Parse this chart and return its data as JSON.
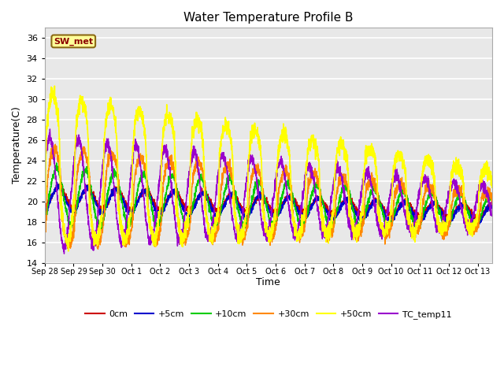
{
  "title": "Water Temperature Profile B",
  "xlabel": "Time",
  "ylabel": "Temperature(C)",
  "ylim": [
    14,
    37
  ],
  "yticks": [
    14,
    16,
    18,
    20,
    22,
    24,
    26,
    28,
    30,
    32,
    34,
    36
  ],
  "series_labels": [
    "0cm",
    "+5cm",
    "+10cm",
    "+30cm",
    "+50cm",
    "TC_temp11"
  ],
  "series_colors": [
    "#cc0000",
    "#0000cc",
    "#00cc00",
    "#ff8800",
    "#ffff00",
    "#9900cc"
  ],
  "series_linewidths": [
    1.0,
    1.0,
    1.0,
    1.0,
    1.2,
    1.0
  ],
  "annotation_text": "SW_met",
  "annotation_color": "#8b0000",
  "annotation_bg": "#ffff99",
  "annotation_border": "#8b6914",
  "fig_bg_color": "#ffffff",
  "plot_bg_color": "#e8e8e8",
  "grid_color": "#ffffff",
  "tick_labels": [
    "Sep 28",
    "Sep 29",
    "Sep 30",
    "Oct 1",
    "Oct 2",
    "Oct 3",
    "Oct 4",
    "Oct 5",
    "Oct 6",
    "Oct 7",
    "Oct 8",
    "Oct 9",
    "Oct 10",
    "Oct 11",
    "Oct 12",
    "Oct 13"
  ],
  "n_days": 15.5,
  "n_points": 3000
}
